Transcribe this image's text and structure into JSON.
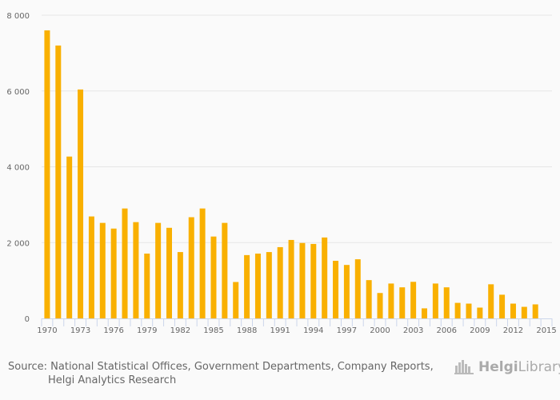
{
  "chart_data": {
    "type": "bar",
    "title": "",
    "xlabel": "",
    "ylabel": "",
    "ylim": [
      0,
      8000
    ],
    "yticks": [
      0,
      2000,
      4000,
      6000,
      8000
    ],
    "ytick_labels": [
      "0",
      "2 000",
      "4 000",
      "6 000",
      "8 000"
    ],
    "xtick_labels": [
      "1970",
      "1973",
      "1976",
      "1979",
      "1982",
      "1985",
      "1988",
      "1991",
      "1994",
      "1997",
      "2000",
      "2003",
      "2006",
      "2009",
      "2012",
      "2015"
    ],
    "grid": true,
    "legend": "none",
    "bar_color": "#f9b000",
    "categories": [
      1970,
      1971,
      1972,
      1973,
      1974,
      1975,
      1976,
      1977,
      1978,
      1979,
      1980,
      1981,
      1982,
      1983,
      1984,
      1985,
      1986,
      1987,
      1988,
      1989,
      1990,
      1991,
      1992,
      1993,
      1994,
      1995,
      1996,
      1997,
      1998,
      1999,
      2000,
      2001,
      2002,
      2003,
      2004,
      2005,
      2006,
      2007,
      2008,
      2009,
      2010,
      2011,
      2012,
      2013,
      2014
    ],
    "values": [
      7600,
      7200,
      4270,
      6040,
      2690,
      2520,
      2370,
      2900,
      2540,
      1710,
      2520,
      2390,
      1750,
      2670,
      2900,
      2160,
      2520,
      960,
      1670,
      1710,
      1750,
      1880,
      2070,
      1990,
      1965,
      2135,
      1520,
      1410,
      1560,
      1010,
      670,
      920,
      820,
      965,
      265,
      920,
      820,
      410,
      390,
      285,
      900,
      625,
      390,
      305,
      370
    ]
  },
  "footer": {
    "source_line1": "Source: National Statistical Offices, Government Departments, Company Reports,",
    "source_line2": "Helgi Analytics Research",
    "logo_text_bold": "Helgi",
    "logo_text": "Library"
  }
}
